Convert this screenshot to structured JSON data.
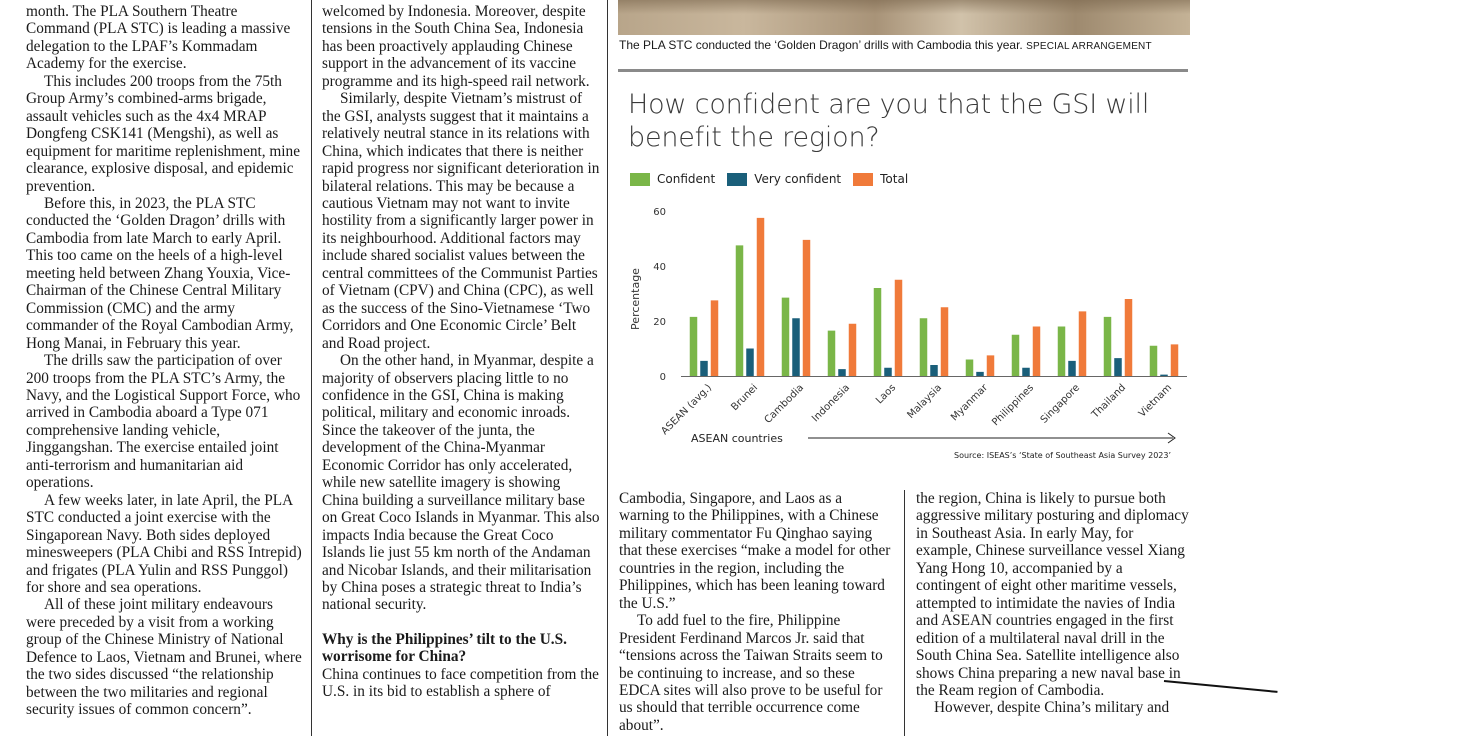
{
  "column1": {
    "paragraphs": [
      "month. The PLA Southern Theatre Command (PLA STC) is leading a massive delegation to the LPAF’s Kommadam Academy for the exercise.",
      "This includes 200 troops from the 75th Group Army’s combined-arms brigade, assault vehicles such as the 4x4 MRAP Dongfeng CSK141 (Mengshi), as well as equipment for maritime replenishment, mine clearance, explosive disposal, and epidemic prevention.",
      "Before this, in 2023, the PLA STC conducted the ‘Golden Dragon’ drills with Cambodia from late March to early April. This too came on the heels of a high-level meeting held between Zhang Youxia, Vice-Chairman of the Chinese Central Military Commission (CMC) and the army commander of the Royal Cambodian Army, Hong Manai, in February this year.",
      "The drills saw the participation of over 200 troops from the PLA STC’s Army, the Navy, and the Logistical Support Force, who arrived in Cambodia aboard a Type 071 comprehensive landing vehicle, Jinggangshan. The exercise entailed joint anti-terrorism and humanitarian aid operations.",
      "A few weeks later, in late April, the PLA STC conducted a joint exercise with the Singaporean Navy. Both sides deployed minesweepers (PLA Chibi and RSS Intrepid) and frigates (PLA Yulin and RSS Punggol) for shore and sea operations.",
      "All of these joint military endeavours were preceded by a visit from a working group of the Chinese Ministry of National Defence to Laos, Vietnam and Brunei, where the two sides discussed “the relationship between the two militaries and regional security issues of common concern”."
    ]
  },
  "column2": {
    "paragraphs": [
      "welcomed by Indonesia. Moreover, despite tensions in the South China Sea, Indonesia has been proactively applauding Chinese support in the advancement of its vaccine programme and its high-speed rail network.",
      "Similarly, despite Vietnam’s mistrust of the GSI, analysts suggest that it maintains a relatively neutral stance in its relations with China, which indicates that there is neither rapid progress nor significant deterioration in bilateral relations. This may be because a cautious Vietnam may not want to invite hostility from a significantly larger power in its neighbourhood. Additional factors may include shared socialist values between the central committees of the Communist Parties of Vietnam (CPV) and China (CPC), as well as the success of the Sino-Vietnamese ‘Two Corridors and One Economic Circle’ Belt and Road project.",
      "On the other hand, in Myanmar, despite a majority of observers placing little to no confidence in the GSI, China is making political, military and economic inroads. Since the takeover of the junta, the development of the China-Myanmar Economic Corridor has only accelerated, while new satellite imagery is showing China building a surveillance military base on Great Coco Islands in Myanmar. This also impacts India because the Great Coco Islands lie just 55 km north of the Andaman and Nicobar Islands, and their militarisation by China poses a strategic threat to India’s national security."
    ],
    "heading": "Why is the Philippines’ tilt to the U.S. worrisome for China?",
    "after_heading": "China continues to face competition from the U.S. in its bid to establish a sphere of"
  },
  "column3": {
    "paragraphs": [
      "Cambodia, Singapore, and Laos as a warning to the Philippines, with a Chinese military commentator Fu Qinghao saying that these exercises “make a model for other countries in the region, including the Philippines, which has been leaning toward the U.S.”",
      "To add fuel to the fire, Philippine President Ferdinand Marcos Jr. said that “tensions across the Taiwan Straits seem to be continuing to increase, and so these EDCA sites will also prove to be useful for us should that terrible occurrence come about”."
    ]
  },
  "column4": {
    "paragraphs": [
      "the region, China is likely to pursue both aggressive military posturing and diplomacy in Southeast Asia. In early May, for example, Chinese surveillance vessel Xiang Yang Hong 10, accompanied by a contingent of eight other maritime vessels, attempted to intimidate the navies of India and ASEAN countries engaged in the first edition of a multilateral naval drill in the South China Sea. Satellite intelligence also shows China preparing a new naval base in the Ream region of Cambodia.",
      "However, despite China’s military and"
    ]
  },
  "photo": {
    "caption": "The PLA STC conducted the ‘Golden Dragon’ drills with Cambodia this year.",
    "credit": "SPECIAL ARRANGEMENT"
  },
  "chart_data": {
    "type": "bar",
    "title": "How confident are you that the GSI will benefit the region?",
    "xlabel": "ASEAN countries",
    "ylabel": "Percentage",
    "ylim": [
      0,
      60
    ],
    "yticks": [
      0,
      20,
      40,
      60
    ],
    "grid": false,
    "legend_position": "top-left",
    "categories": [
      "ASEAN (avg.)",
      "Brunei",
      "Cambodia",
      "Indonesia",
      "Laos",
      "Malaysia",
      "Myanmar",
      "Philippines",
      "Singapore",
      "Thailand",
      "Vietnam"
    ],
    "series": [
      {
        "name": "Confident",
        "color": "#7ab648",
        "values": [
          21.5,
          47.5,
          28.5,
          16.5,
          32,
          21,
          6,
          15,
          18,
          21.5,
          11
        ]
      },
      {
        "name": "Very confident",
        "color": "#1a5f7a",
        "values": [
          5.5,
          10,
          21,
          2.5,
          3,
          4,
          1.5,
          3,
          5.5,
          6.5,
          0.5
        ]
      },
      {
        "name": "Total",
        "color": "#f07a3a",
        "values": [
          27.5,
          57.5,
          49.5,
          19,
          35,
          25,
          7.5,
          18,
          23.5,
          28,
          11.5
        ]
      }
    ],
    "source": "Source: ISEAS’s ‘State of Southeast Asia Survey 2023’"
  }
}
